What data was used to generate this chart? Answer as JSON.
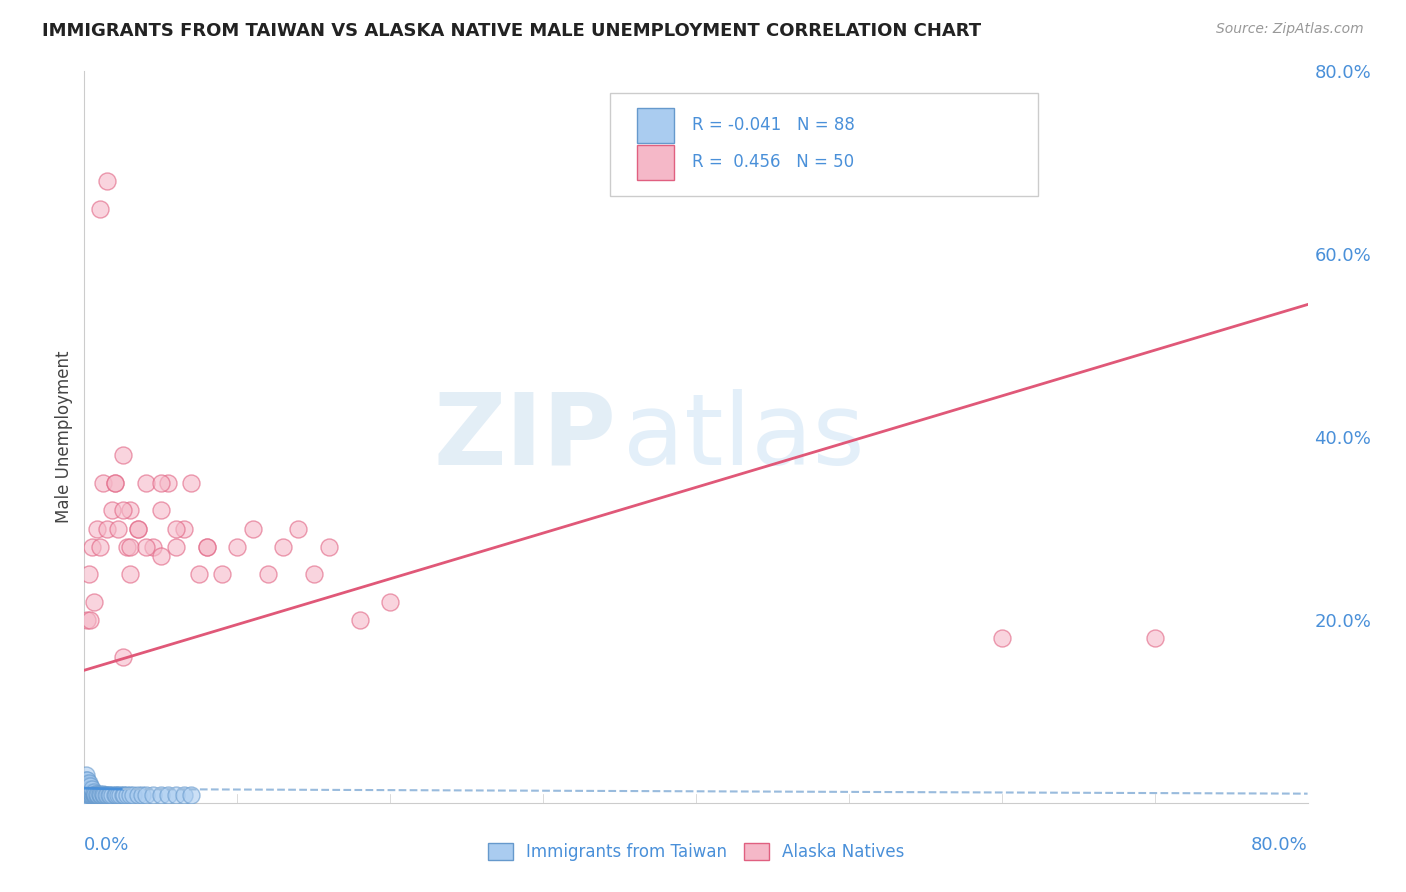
{
  "title": "IMMIGRANTS FROM TAIWAN VS ALASKA NATIVE MALE UNEMPLOYMENT CORRELATION CHART",
  "source": "Source: ZipAtlas.com",
  "ylabel": "Male Unemployment",
  "legend_label1": "Immigrants from Taiwan",
  "legend_label2": "Alaska Natives",
  "r1": -0.041,
  "n1": 88,
  "r2": 0.456,
  "n2": 50,
  "color_blue": "#aaccf0",
  "color_blue_edge": "#6699cc",
  "color_pink": "#f5b8c8",
  "color_pink_edge": "#e06080",
  "color_pink_line": "#e05878",
  "color_blue_line": "#4a90d9",
  "color_blue_dashed": "#99bbdd",
  "background": "#ffffff",
  "grid_color": "#bbddee",
  "xmin": 0.0,
  "xmax": 0.8,
  "ymin": 0.0,
  "ymax": 0.8,
  "taiwan_x": [
    0.0005,
    0.001,
    0.001,
    0.001,
    0.001,
    0.001,
    0.001,
    0.001,
    0.001,
    0.001,
    0.001,
    0.001,
    0.001,
    0.001,
    0.001,
    0.001,
    0.001,
    0.001,
    0.001,
    0.001,
    0.002,
    0.002,
    0.002,
    0.002,
    0.002,
    0.002,
    0.002,
    0.002,
    0.002,
    0.002,
    0.002,
    0.002,
    0.002,
    0.002,
    0.003,
    0.003,
    0.003,
    0.003,
    0.003,
    0.003,
    0.003,
    0.003,
    0.004,
    0.004,
    0.004,
    0.004,
    0.004,
    0.005,
    0.005,
    0.005,
    0.005,
    0.006,
    0.006,
    0.006,
    0.007,
    0.007,
    0.008,
    0.008,
    0.009,
    0.01,
    0.01,
    0.011,
    0.012,
    0.012,
    0.013,
    0.014,
    0.015,
    0.016,
    0.017,
    0.018,
    0.02,
    0.021,
    0.022,
    0.023,
    0.025,
    0.026,
    0.028,
    0.03,
    0.032,
    0.035,
    0.038,
    0.04,
    0.045,
    0.05,
    0.055,
    0.06,
    0.065,
    0.07
  ],
  "taiwan_y": [
    0.01,
    0.005,
    0.008,
    0.01,
    0.012,
    0.015,
    0.018,
    0.02,
    0.022,
    0.025,
    0.005,
    0.007,
    0.01,
    0.012,
    0.014,
    0.016,
    0.018,
    0.02,
    0.025,
    0.03,
    0.005,
    0.008,
    0.01,
    0.012,
    0.015,
    0.018,
    0.02,
    0.022,
    0.025,
    0.008,
    0.01,
    0.012,
    0.015,
    0.018,
    0.005,
    0.008,
    0.01,
    0.012,
    0.015,
    0.018,
    0.02,
    0.022,
    0.008,
    0.01,
    0.012,
    0.015,
    0.018,
    0.008,
    0.01,
    0.012,
    0.015,
    0.008,
    0.01,
    0.012,
    0.008,
    0.01,
    0.008,
    0.01,
    0.008,
    0.008,
    0.01,
    0.008,
    0.008,
    0.01,
    0.008,
    0.008,
    0.008,
    0.008,
    0.008,
    0.008,
    0.008,
    0.008,
    0.008,
    0.008,
    0.008,
    0.008,
    0.008,
    0.008,
    0.008,
    0.008,
    0.008,
    0.008,
    0.008,
    0.008,
    0.008,
    0.008,
    0.008,
    0.008
  ],
  "alaska_x": [
    0.002,
    0.003,
    0.004,
    0.005,
    0.006,
    0.008,
    0.01,
    0.012,
    0.015,
    0.018,
    0.02,
    0.022,
    0.025,
    0.028,
    0.03,
    0.03,
    0.035,
    0.04,
    0.045,
    0.05,
    0.055,
    0.06,
    0.065,
    0.07,
    0.075,
    0.08,
    0.09,
    0.1,
    0.11,
    0.12,
    0.13,
    0.14,
    0.15,
    0.16,
    0.18,
    0.2,
    0.01,
    0.015,
    0.02,
    0.025,
    0.03,
    0.035,
    0.04,
    0.05,
    0.06,
    0.08,
    0.6,
    0.7,
    0.025,
    0.05
  ],
  "alaska_y": [
    0.2,
    0.25,
    0.2,
    0.28,
    0.22,
    0.3,
    0.28,
    0.35,
    0.3,
    0.32,
    0.35,
    0.3,
    0.38,
    0.28,
    0.32,
    0.25,
    0.3,
    0.35,
    0.28,
    0.32,
    0.35,
    0.28,
    0.3,
    0.35,
    0.25,
    0.28,
    0.25,
    0.28,
    0.3,
    0.25,
    0.28,
    0.3,
    0.25,
    0.28,
    0.2,
    0.22,
    0.65,
    0.68,
    0.35,
    0.32,
    0.28,
    0.3,
    0.28,
    0.35,
    0.3,
    0.28,
    0.18,
    0.18,
    0.16,
    0.27
  ],
  "pink_line_x0": 0.0,
  "pink_line_y0": 0.145,
  "pink_line_x1": 0.8,
  "pink_line_y1": 0.545,
  "blue_line_x0": 0.0,
  "blue_line_y0": 0.016,
  "blue_line_x1": 0.025,
  "blue_line_y1": 0.015,
  "blue_line_x2": 0.8,
  "blue_line_y2": 0.01,
  "right_yticks": [
    0.0,
    0.2,
    0.4,
    0.6,
    0.8
  ],
  "right_yticklabels": [
    "",
    "20.0%",
    "40.0%",
    "60.0%",
    "80.0%"
  ]
}
